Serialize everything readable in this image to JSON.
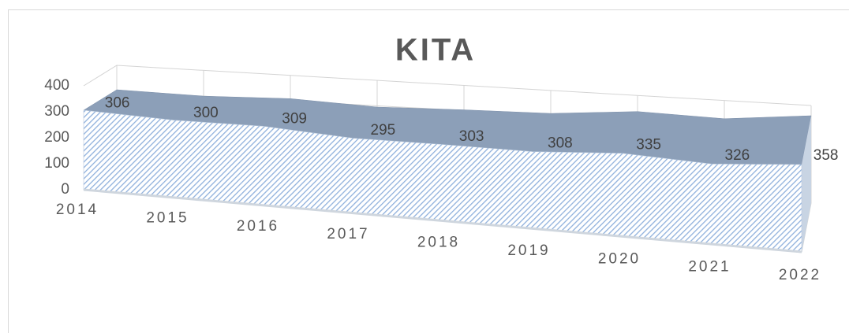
{
  "chart_data": {
    "type": "area",
    "title": "KITA",
    "categories": [
      "2014",
      "2015",
      "2016",
      "2017",
      "2018",
      "2019",
      "2020",
      "2021",
      "2022"
    ],
    "values": [
      306,
      300,
      309,
      295,
      303,
      308,
      335,
      326,
      358
    ],
    "color": "#a9c4e8",
    "ylim": [
      0,
      400
    ],
    "yticks": [
      0,
      100,
      200,
      300,
      400
    ],
    "grid": true
  }
}
